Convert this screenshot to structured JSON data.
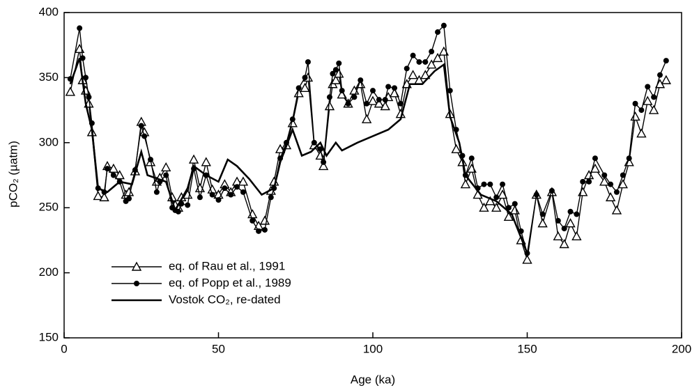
{
  "chart_data": {
    "type": "line",
    "x_label": "Age (ka)",
    "y_label": "pCO₂ (µatm)",
    "xlim": [
      0,
      200
    ],
    "xticks": [
      0,
      50,
      100,
      150,
      200
    ],
    "ylim": [
      150,
      400
    ],
    "yticks": [
      150,
      200,
      250,
      300,
      350,
      400
    ],
    "legend": "lower left",
    "series": [
      {
        "name": "eq. of Rau et al., 1991",
        "color": "#000000",
        "marker": "triangle",
        "x": [
          2,
          5,
          6,
          7,
          8,
          9,
          11,
          13,
          14,
          16,
          18,
          20,
          21,
          23,
          25,
          26,
          28,
          30,
          31,
          33,
          35,
          36,
          37,
          38,
          40,
          42,
          44,
          46,
          48,
          50,
          52,
          54,
          56,
          58,
          61,
          63,
          65,
          67,
          68,
          70,
          72,
          74,
          76,
          78,
          79,
          81,
          83,
          84,
          86,
          87,
          88,
          89,
          90,
          92,
          94,
          96,
          98,
          100,
          102,
          104,
          105,
          107,
          109,
          111,
          113,
          115,
          117,
          119,
          121,
          123,
          125,
          127,
          129,
          130,
          132,
          134,
          136,
          138,
          140,
          142,
          144,
          146,
          148,
          150,
          153,
          155,
          158,
          160,
          162,
          164,
          166,
          168,
          170,
          172,
          175,
          177,
          179,
          181,
          183,
          185,
          187,
          189,
          191,
          193,
          195
        ],
        "values": [
          339,
          372,
          348,
          340,
          330,
          308,
          259,
          258,
          282,
          280,
          275,
          260,
          262,
          278,
          316,
          308,
          285,
          270,
          273,
          281,
          258,
          252,
          250,
          258,
          260,
          287,
          265,
          285,
          264,
          260,
          268,
          262,
          270,
          270,
          245,
          236,
          240,
          263,
          270,
          295,
          298,
          315,
          338,
          342,
          350,
          298,
          290,
          282,
          328,
          345,
          348,
          353,
          337,
          330,
          340,
          345,
          318,
          332,
          330,
          328,
          335,
          338,
          322,
          345,
          352,
          348,
          352,
          360,
          365,
          370,
          322,
          295,
          285,
          268,
          280,
          260,
          250,
          255,
          250,
          260,
          243,
          248,
          225,
          210,
          260,
          238,
          262,
          228,
          222,
          238,
          228,
          262,
          275,
          280,
          270,
          258,
          248,
          268,
          285,
          320,
          307,
          332,
          325,
          345,
          348
        ]
      },
      {
        "name": "eq. of Popp et al., 1989",
        "color": "#000000",
        "marker": "circle",
        "x": [
          2,
          5,
          6,
          7,
          8,
          9,
          11,
          13,
          14,
          16,
          18,
          20,
          21,
          23,
          25,
          26,
          28,
          30,
          31,
          33,
          35,
          36,
          37,
          38,
          40,
          42,
          44,
          46,
          48,
          50,
          52,
          54,
          56,
          58,
          61,
          63,
          65,
          67,
          68,
          70,
          72,
          74,
          76,
          78,
          79,
          81,
          83,
          84,
          86,
          87,
          88,
          89,
          90,
          92,
          94,
          96,
          98,
          100,
          102,
          104,
          105,
          107,
          109,
          111,
          113,
          115,
          117,
          119,
          121,
          123,
          125,
          127,
          129,
          130,
          132,
          134,
          136,
          138,
          140,
          142,
          144,
          146,
          148,
          150,
          153,
          155,
          158,
          160,
          162,
          164,
          166,
          168,
          170,
          172,
          175,
          177,
          179,
          181,
          183,
          185,
          187,
          189,
          191,
          193,
          195
        ],
        "values": [
          349,
          388,
          365,
          350,
          335,
          315,
          265,
          262,
          280,
          275,
          270,
          255,
          257,
          279,
          313,
          305,
          287,
          262,
          270,
          275,
          250,
          248,
          247,
          253,
          252,
          280,
          258,
          275,
          260,
          256,
          265,
          260,
          266,
          262,
          240,
          232,
          233,
          258,
          265,
          288,
          300,
          318,
          342,
          350,
          362,
          300,
          295,
          285,
          335,
          353,
          356,
          361,
          340,
          330,
          335,
          348,
          330,
          340,
          333,
          333,
          343,
          342,
          330,
          357,
          367,
          362,
          362,
          370,
          385,
          390,
          340,
          310,
          290,
          275,
          288,
          265,
          268,
          268,
          258,
          268,
          250,
          253,
          232,
          215,
          260,
          245,
          263,
          240,
          234,
          247,
          245,
          270,
          270,
          288,
          275,
          268,
          262,
          275,
          288,
          330,
          325,
          343,
          335,
          352,
          363
        ]
      },
      {
        "name": "Vostok CO₂, re-dated",
        "color": "#000000",
        "marker": "none",
        "x": [
          2,
          5,
          7,
          9,
          11,
          14,
          18,
          22,
          25,
          27,
          33,
          36,
          40,
          42,
          46,
          50,
          53,
          56,
          60,
          64,
          68,
          70,
          74,
          77,
          80,
          83,
          85,
          88,
          90,
          95,
          100,
          105,
          109,
          112,
          116,
          120,
          123,
          125,
          128,
          130,
          135,
          140,
          145,
          150
        ],
        "values": [
          345,
          365,
          330,
          310,
          265,
          262,
          270,
          268,
          293,
          275,
          270,
          248,
          265,
          282,
          275,
          270,
          287,
          282,
          272,
          260,
          265,
          285,
          310,
          290,
          293,
          300,
          290,
          300,
          294,
          300,
          305,
          310,
          318,
          345,
          345,
          355,
          360,
          320,
          300,
          275,
          260,
          255,
          245,
          215
        ]
      }
    ]
  }
}
